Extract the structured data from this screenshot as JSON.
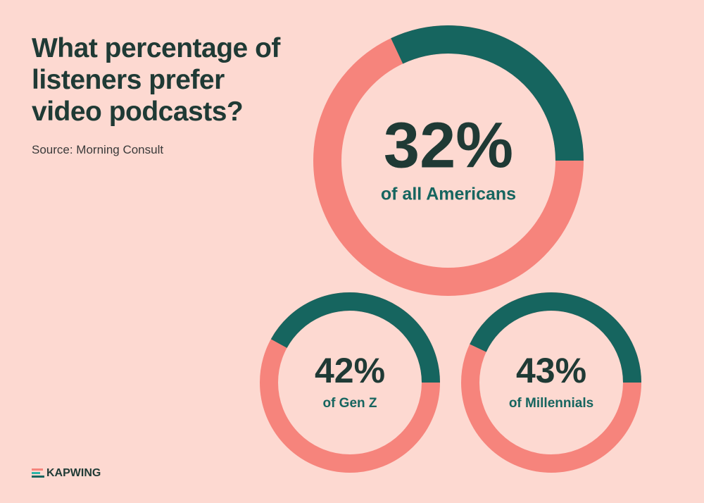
{
  "title": "What percentage of listeners prefer video podcasts?",
  "source": "Source: Morning Consult",
  "logo": "KAPWING",
  "chart_data": [
    {
      "type": "donut",
      "values": [
        32
      ],
      "value_labels": [
        "32%"
      ],
      "label": "of all Americans",
      "color": "#16655f",
      "track_color": "#f6847c"
    },
    {
      "type": "donut",
      "values": [
        42
      ],
      "value_labels": [
        "42%"
      ],
      "label": "of Gen Z",
      "color": "#16655f",
      "track_color": "#f6847c"
    },
    {
      "type": "donut",
      "values": [
        43
      ],
      "value_labels": [
        "43%"
      ],
      "label": "of Millennials",
      "color": "#16655f",
      "track_color": "#f6847c"
    }
  ]
}
